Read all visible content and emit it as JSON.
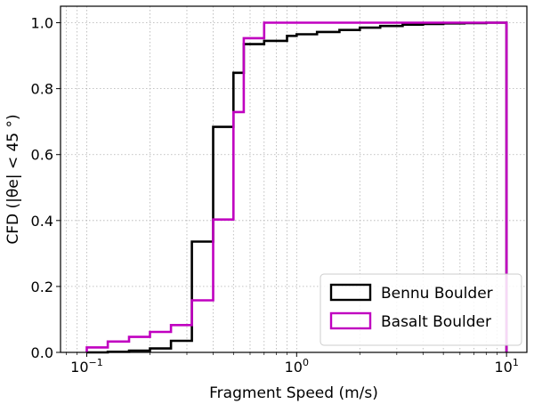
{
  "chart_data": {
    "type": "step",
    "xscale": "log",
    "xlim": [
      0.075,
      12.5
    ],
    "ylim": [
      0,
      1.05
    ],
    "grid": true,
    "xlabel": "Fragment Speed (m/s)",
    "ylabel": "CFD (|θe| < 45 °)",
    "xticks": [
      {
        "value": 0.1,
        "base": "10",
        "exp": "−1"
      },
      {
        "value": 1,
        "base": "10",
        "exp": "0"
      },
      {
        "value": 10,
        "base": "10",
        "exp": "1"
      }
    ],
    "yticks": [
      {
        "value": 0.0,
        "label": "0.0"
      },
      {
        "value": 0.2,
        "label": "0.2"
      },
      {
        "value": 0.4,
        "label": "0.4"
      },
      {
        "value": 0.6,
        "label": "0.6"
      },
      {
        "value": 0.8,
        "label": "0.8"
      },
      {
        "value": 1.0,
        "label": "1.0"
      }
    ],
    "legend_position": "lower-right",
    "series": [
      {
        "name": "Bennu Boulder",
        "color": "#000000",
        "x": [
          0.1,
          0.126,
          0.159,
          0.2,
          0.252,
          0.317,
          0.4,
          0.5,
          0.56,
          0.7,
          0.9,
          1.0,
          1.25,
          1.6,
          2.0,
          2.5,
          3.2,
          4.0,
          5.0,
          6.3,
          8.0,
          10.0
        ],
        "y": [
          0.0,
          0.002,
          0.005,
          0.012,
          0.035,
          0.336,
          0.684,
          0.848,
          0.935,
          0.945,
          0.96,
          0.965,
          0.972,
          0.978,
          0.985,
          0.99,
          0.994,
          0.996,
          0.998,
          0.999,
          1.0,
          1.0
        ]
      },
      {
        "name": "Basalt Boulder",
        "color": "#c000c0",
        "x": [
          0.1,
          0.126,
          0.159,
          0.2,
          0.252,
          0.317,
          0.4,
          0.5,
          0.56,
          0.7,
          0.9,
          1.25,
          1.6,
          2.0,
          2.5,
          3.2,
          4.0,
          5.0,
          6.3,
          8.0,
          10.0
        ],
        "y": [
          0.015,
          0.033,
          0.047,
          0.062,
          0.083,
          0.158,
          0.403,
          0.729,
          0.953,
          1.0,
          1.0,
          1.0,
          1.0,
          1.0,
          1.0,
          1.0,
          1.0,
          1.0,
          1.0,
          1.0,
          1.0
        ]
      }
    ]
  }
}
